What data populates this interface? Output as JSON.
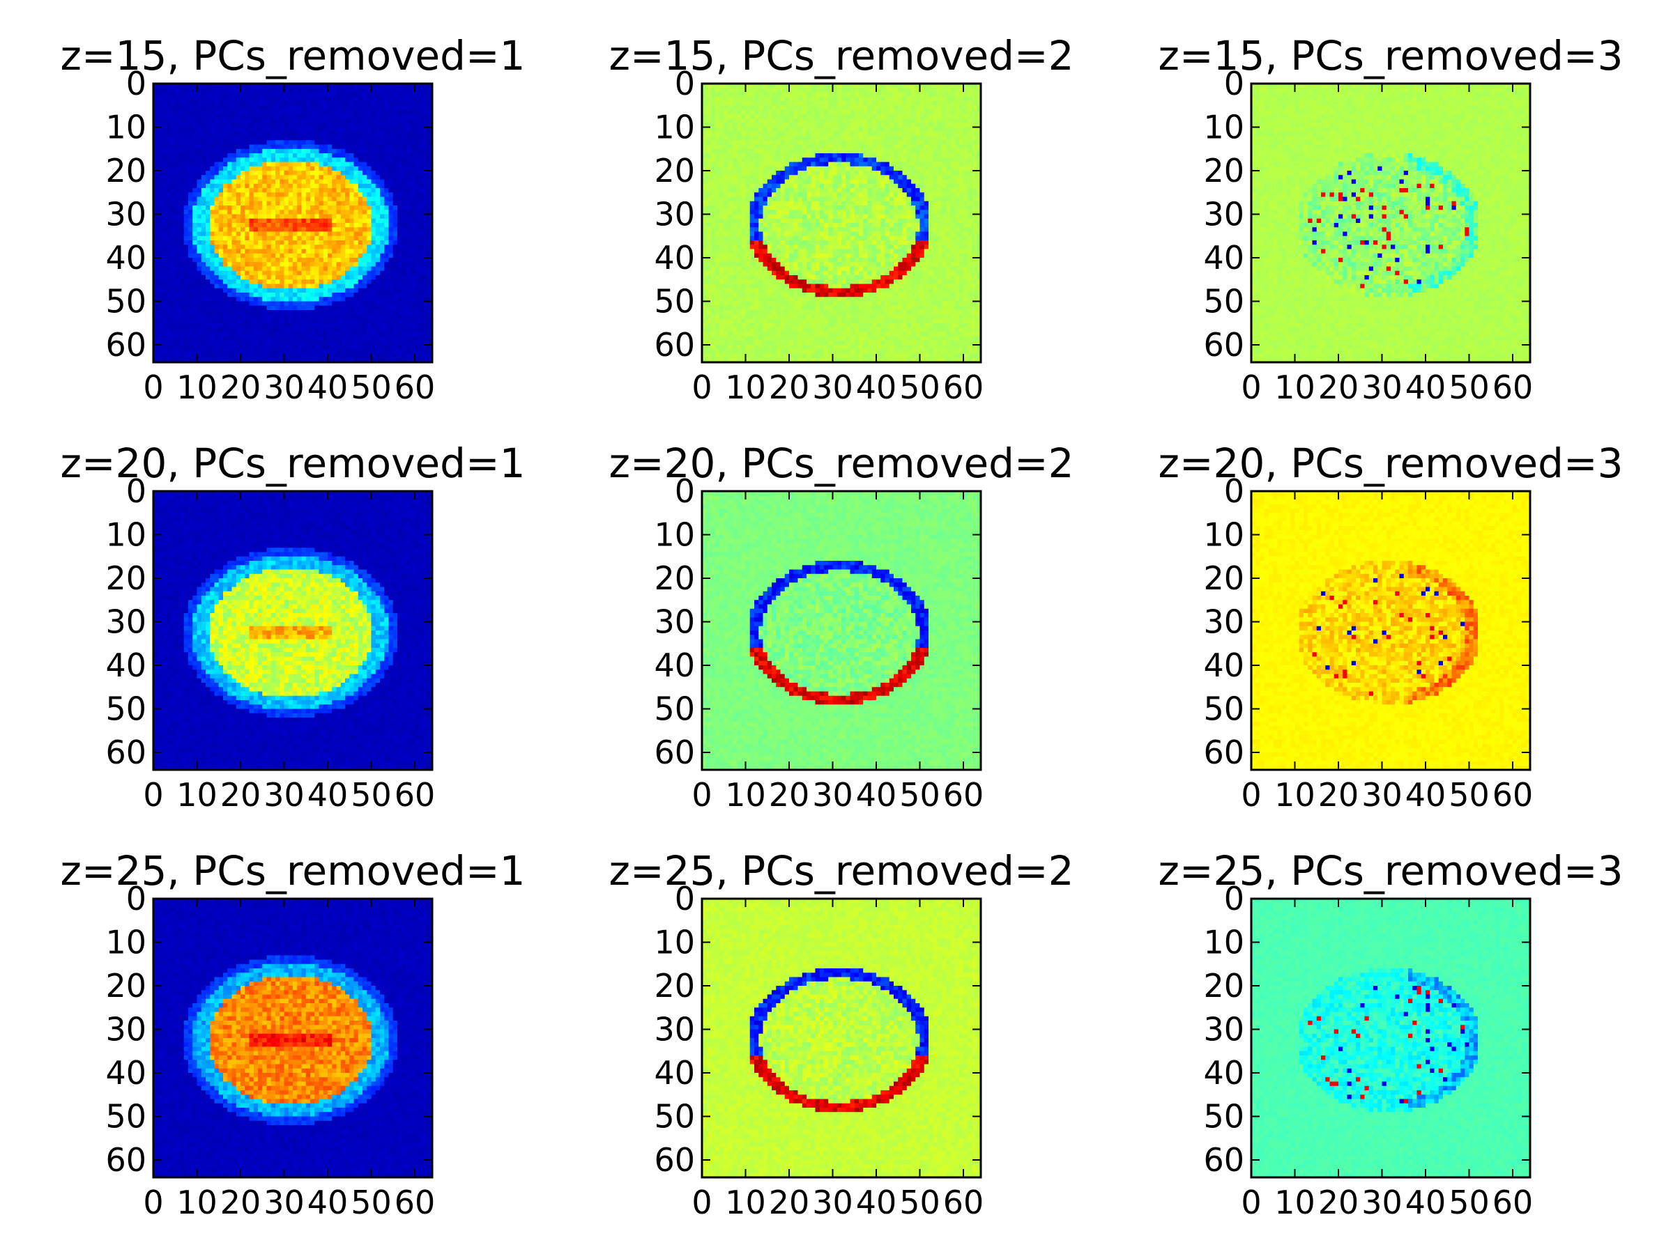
{
  "colors": {
    "background": "#ffffff",
    "axes_frame": "#000000"
  },
  "chart_data": [
    {
      "type": "heatmap",
      "colormap": "jet",
      "title": "z=15, PCs_removed=1",
      "xlim": [
        0,
        64
      ],
      "ylim": [
        64,
        0
      ],
      "xticks": [
        0,
        10,
        20,
        30,
        40,
        50,
        60
      ],
      "yticks": [
        0,
        10,
        20,
        30,
        40,
        50,
        60
      ],
      "background_level": 0.06,
      "brain_level": 0.68,
      "rim_level": 0.35,
      "feature": "full"
    },
    {
      "type": "heatmap",
      "colormap": "jet",
      "title": "z=15, PCs_removed=2",
      "xlim": [
        0,
        64
      ],
      "ylim": [
        64,
        0
      ],
      "xticks": [
        0,
        10,
        20,
        30,
        40,
        50,
        60
      ],
      "yticks": [
        0,
        10,
        20,
        30,
        40,
        50,
        60
      ],
      "background_level": 0.55,
      "brain_level": 0.55,
      "rim_level": 0.18,
      "feature": "rim"
    },
    {
      "type": "heatmap",
      "colormap": "jet",
      "title": "z=15, PCs_removed=3",
      "xlim": [
        0,
        64
      ],
      "ylim": [
        64,
        0
      ],
      "xticks": [
        0,
        10,
        20,
        30,
        40,
        50,
        60
      ],
      "yticks": [
        0,
        10,
        20,
        30,
        40,
        50,
        60
      ],
      "background_level": 0.55,
      "brain_level": 0.52,
      "rim_level": 0.45,
      "feature": "spots"
    },
    {
      "type": "heatmap",
      "colormap": "jet",
      "title": "z=20, PCs_removed=1",
      "xlim": [
        0,
        64
      ],
      "ylim": [
        64,
        0
      ],
      "xticks": [
        0,
        10,
        20,
        30,
        40,
        50,
        60
      ],
      "yticks": [
        0,
        10,
        20,
        30,
        40,
        50,
        60
      ],
      "background_level": 0.06,
      "brain_level": 0.58,
      "rim_level": 0.32,
      "feature": "full"
    },
    {
      "type": "heatmap",
      "colormap": "jet",
      "title": "z=20, PCs_removed=2",
      "xlim": [
        0,
        64
      ],
      "ylim": [
        64,
        0
      ],
      "xticks": [
        0,
        10,
        20,
        30,
        40,
        50,
        60
      ],
      "yticks": [
        0,
        10,
        20,
        30,
        40,
        50,
        60
      ],
      "background_level": 0.5,
      "brain_level": 0.5,
      "rim_level": 0.15,
      "feature": "rim"
    },
    {
      "type": "heatmap",
      "colormap": "jet",
      "title": "z=20, PCs_removed=3",
      "xlim": [
        0,
        64
      ],
      "ylim": [
        64,
        0
      ],
      "xticks": [
        0,
        10,
        20,
        30,
        40,
        50,
        60
      ],
      "yticks": [
        0,
        10,
        20,
        30,
        40,
        50,
        60
      ],
      "background_level": 0.63,
      "brain_level": 0.66,
      "rim_level": 0.75,
      "feature": "spots"
    },
    {
      "type": "heatmap",
      "colormap": "jet",
      "title": "z=25, PCs_removed=1",
      "xlim": [
        0,
        64
      ],
      "ylim": [
        64,
        0
      ],
      "xticks": [
        0,
        10,
        20,
        30,
        40,
        50,
        60
      ],
      "yticks": [
        0,
        10,
        20,
        30,
        40,
        50,
        60
      ],
      "background_level": 0.06,
      "brain_level": 0.74,
      "rim_level": 0.3,
      "feature": "full"
    },
    {
      "type": "heatmap",
      "colormap": "jet",
      "title": "z=25, PCs_removed=2",
      "xlim": [
        0,
        64
      ],
      "ylim": [
        64,
        0
      ],
      "xticks": [
        0,
        10,
        20,
        30,
        40,
        50,
        60
      ],
      "yticks": [
        0,
        10,
        20,
        30,
        40,
        50,
        60
      ],
      "background_level": 0.57,
      "brain_level": 0.56,
      "rim_level": 0.15,
      "feature": "rim"
    },
    {
      "type": "heatmap",
      "colormap": "jet",
      "title": "z=25, PCs_removed=3",
      "xlim": [
        0,
        64
      ],
      "ylim": [
        64,
        0
      ],
      "xticks": [
        0,
        10,
        20,
        30,
        40,
        50,
        60
      ],
      "yticks": [
        0,
        10,
        20,
        30,
        40,
        50,
        60
      ],
      "background_level": 0.45,
      "brain_level": 0.4,
      "rim_level": 0.3,
      "feature": "spots"
    }
  ]
}
